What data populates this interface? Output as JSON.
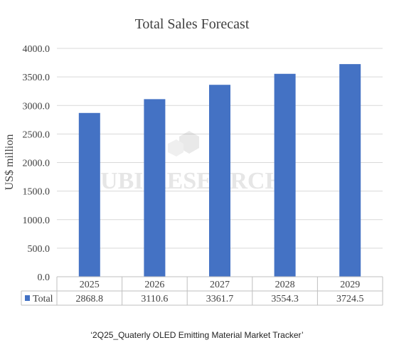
{
  "chart_data": {
    "type": "bar",
    "title": "Total Sales Forecast",
    "ylabel": "US$ million",
    "xlabel": "",
    "categories": [
      "2025",
      "2026",
      "2027",
      "2028",
      "2029"
    ],
    "series": [
      {
        "name": "Total",
        "values": [
          2868.8,
          3110.6,
          3361.7,
          3554.3,
          3724.5
        ],
        "color": "#4472C4"
      }
    ],
    "value_labels": [
      "2868.8",
      "3110.6",
      "3361.7",
      "3554.3",
      "3724.5"
    ],
    "ylim": [
      0,
      4000
    ],
    "yticks": [
      "0.0",
      "500.0",
      "1000.0",
      "1500.0",
      "2000.0",
      "2500.0",
      "3000.0",
      "3500.0",
      "4000.0"
    ],
    "grid": true,
    "data_table": true
  },
  "watermark": "UBI RESEARCH",
  "caption": "‘2Q25_Quaterly OLED Emitting Material Market Tracker’"
}
